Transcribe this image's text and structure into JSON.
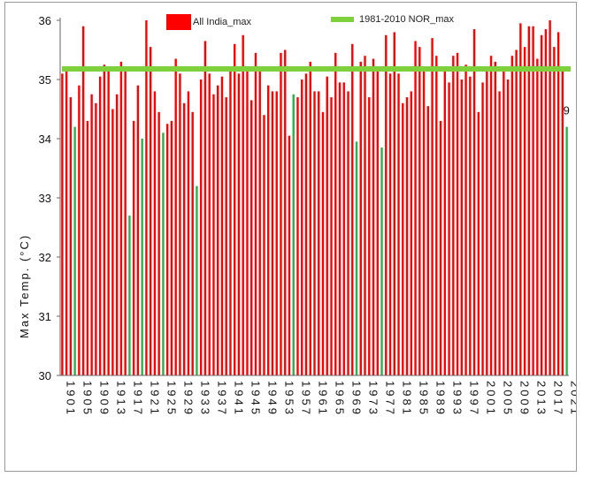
{
  "chart_data": {
    "type": "bar",
    "ylabel": "Max Temp. (°C)",
    "ylim": [
      30,
      36
    ],
    "yticks": [
      30,
      31,
      32,
      33,
      34,
      35,
      36
    ],
    "xtick_labels": [
      "1901",
      "1905",
      "1909",
      "1913",
      "1917",
      "1921",
      "1925",
      "1929",
      "1933",
      "1937",
      "1941",
      "1945",
      "1949",
      "1953",
      "1957",
      "1961",
      "1965",
      "1969",
      "1973",
      "1977",
      "1981",
      "1985",
      "1989",
      "1993",
      "1997",
      "2001",
      "2005",
      "2009",
      "2013",
      "2017",
      "2021"
    ],
    "annotation": "9",
    "series": [
      {
        "name": "All India_max",
        "color": "#ff0000",
        "x": [
          1901,
          1902,
          1903,
          1904,
          1905,
          1906,
          1907,
          1908,
          1909,
          1910,
          1911,
          1912,
          1913,
          1914,
          1915,
          1916,
          1917,
          1918,
          1919,
          1920,
          1921,
          1922,
          1923,
          1924,
          1925,
          1926,
          1927,
          1928,
          1929,
          1930,
          1931,
          1932,
          1933,
          1934,
          1935,
          1936,
          1937,
          1938,
          1939,
          1940,
          1941,
          1942,
          1943,
          1944,
          1945,
          1946,
          1947,
          1948,
          1949,
          1950,
          1951,
          1952,
          1953,
          1954,
          1955,
          1956,
          1957,
          1958,
          1959,
          1960,
          1961,
          1962,
          1963,
          1964,
          1965,
          1966,
          1967,
          1968,
          1969,
          1970,
          1971,
          1972,
          1973,
          1974,
          1975,
          1976,
          1977,
          1978,
          1979,
          1980,
          1981,
          1982,
          1983,
          1984,
          1985,
          1986,
          1987,
          1988,
          1989,
          1990,
          1991,
          1992,
          1993,
          1994,
          1995,
          1996,
          1997,
          1998,
          1999,
          2000,
          2001,
          2002,
          2003,
          2004,
          2005,
          2006,
          2007,
          2008,
          2009,
          2010,
          2011,
          2012,
          2013,
          2014,
          2015,
          2016,
          2017,
          2018,
          2019,
          2020,
          2021
        ],
        "values": [
          35.1,
          35.2,
          34.7,
          34.2,
          34.9,
          35.9,
          34.3,
          34.75,
          34.6,
          35.05,
          35.25,
          35.2,
          34.5,
          34.75,
          35.3,
          35.2,
          32.7,
          34.3,
          34.9,
          34.0,
          36.0,
          35.55,
          34.8,
          34.45,
          34.1,
          34.25,
          34.3,
          35.35,
          35.1,
          34.6,
          34.8,
          34.45,
          33.2,
          35.0,
          35.65,
          35.1,
          34.75,
          34.9,
          35.05,
          34.7,
          35.2,
          35.6,
          35.1,
          35.75,
          35.2,
          34.65,
          35.45,
          35.2,
          34.4,
          34.9,
          34.8,
          34.8,
          35.45,
          35.5,
          34.05,
          34.75,
          34.7,
          35.0,
          35.1,
          35.3,
          34.8,
          34.8,
          34.45,
          35.05,
          34.7,
          35.45,
          34.95,
          34.95,
          34.8,
          35.6,
          33.95,
          35.3,
          35.4,
          34.7,
          35.35,
          35.2,
          33.85,
          35.75,
          35.1,
          35.8,
          35.1,
          34.6,
          34.7,
          34.8,
          35.65,
          35.55,
          35.15,
          34.55,
          35.7,
          35.4,
          34.3,
          35.15,
          34.95,
          35.4,
          35.45,
          35.0,
          35.25,
          35.05,
          35.85,
          34.45,
          34.95,
          35.15,
          35.4,
          35.3,
          34.8,
          35.2,
          35.0,
          35.4,
          35.5,
          35.95,
          35.55,
          35.9,
          35.9,
          35.35,
          35.75,
          35.85,
          36.0,
          35.55,
          35.8,
          35.15,
          34.2
        ]
      },
      {
        "name": "1981-2010 NOR_max",
        "color": "#7fd13b",
        "values": [
          35.18
        ]
      }
    ],
    "highlight": {
      "color": "#2bb14c",
      "x": [
        1904,
        1917,
        1920,
        1925,
        1933,
        1956,
        1971,
        1977,
        2021
      ]
    }
  }
}
